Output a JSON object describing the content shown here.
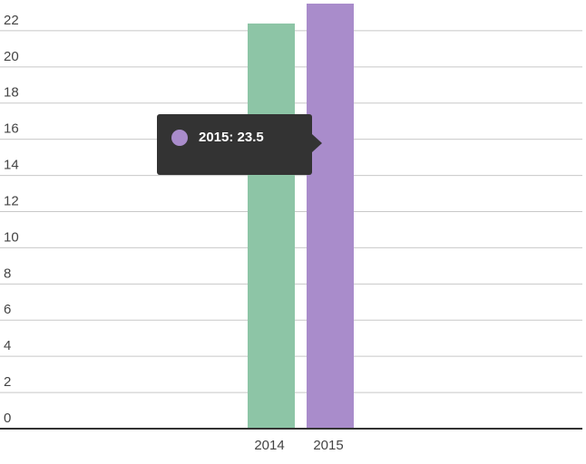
{
  "chart_data": {
    "type": "bar",
    "categories": [
      "2014",
      "2015"
    ],
    "values": [
      22.4,
      23.5
    ],
    "colors": [
      "#8dc5a6",
      "#a98ccb"
    ],
    "ylim": [
      0,
      23.7
    ],
    "yticks": [
      0,
      2,
      4,
      6,
      8,
      10,
      12,
      14,
      16,
      18,
      20,
      22
    ],
    "grid": true,
    "tooltip": {
      "label": "2015: 23.5",
      "color": "#a98ccb"
    }
  }
}
